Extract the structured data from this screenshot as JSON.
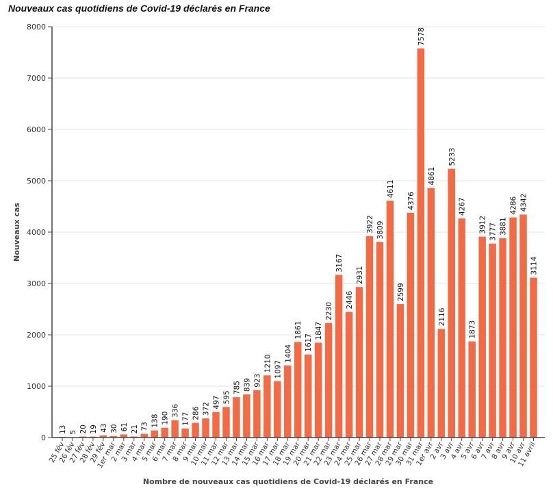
{
  "chart_data": {
    "type": "bar",
    "title": "Nouveaux cas quotidiens de Covid-19 déclarés en France",
    "xlabel": "Nombre de nouveaux cas quotidiens de Covid-19 déclarés en France",
    "ylabel": "Nouveaux cas",
    "ylim": [
      0,
      8000
    ],
    "yticks": [
      0,
      1000,
      2000,
      3000,
      4000,
      5000,
      6000,
      7000,
      8000
    ],
    "grid": true,
    "bar_color": "#f26b45",
    "categories": [
      "25 fév",
      "26 fév",
      "27 fév",
      "28 fév",
      "29 fév",
      "1er mar",
      "2 mar",
      "3 mar",
      "4 mar",
      "5 mar",
      "6 mar",
      "7 mar",
      "8 mar",
      "9 mar",
      "10 mar",
      "11 mar",
      "12 mar",
      "13 mar",
      "14 mar",
      "15 mar",
      "16 mar",
      "17 mar",
      "18 mar",
      "19 mar",
      "20 mar",
      "21 mar",
      "22 mar",
      "23 mar",
      "24 mar",
      "25 mar",
      "26 mar",
      "27 mar",
      "28 mar",
      "29 mar",
      "30 mar",
      "31 mar",
      "1er avr",
      "2 avr",
      "3 avr",
      "4 avr",
      "5 avr",
      "6 avr",
      "7 avr",
      "8 avr",
      "9 avr",
      "10 avr",
      "11 avril"
    ],
    "values": [
      13,
      5,
      20,
      19,
      43,
      30,
      61,
      21,
      73,
      138,
      190,
      336,
      177,
      286,
      372,
      497,
      595,
      785,
      839,
      923,
      1210,
      1097,
      1404,
      1861,
      1617,
      1847,
      2230,
      3167,
      2446,
      2931,
      3922,
      3809,
      4611,
      2599,
      4376,
      7578,
      4861,
      2116,
      5233,
      4267,
      1873,
      3912,
      3777,
      3881,
      4286,
      4342,
      3114
    ]
  }
}
